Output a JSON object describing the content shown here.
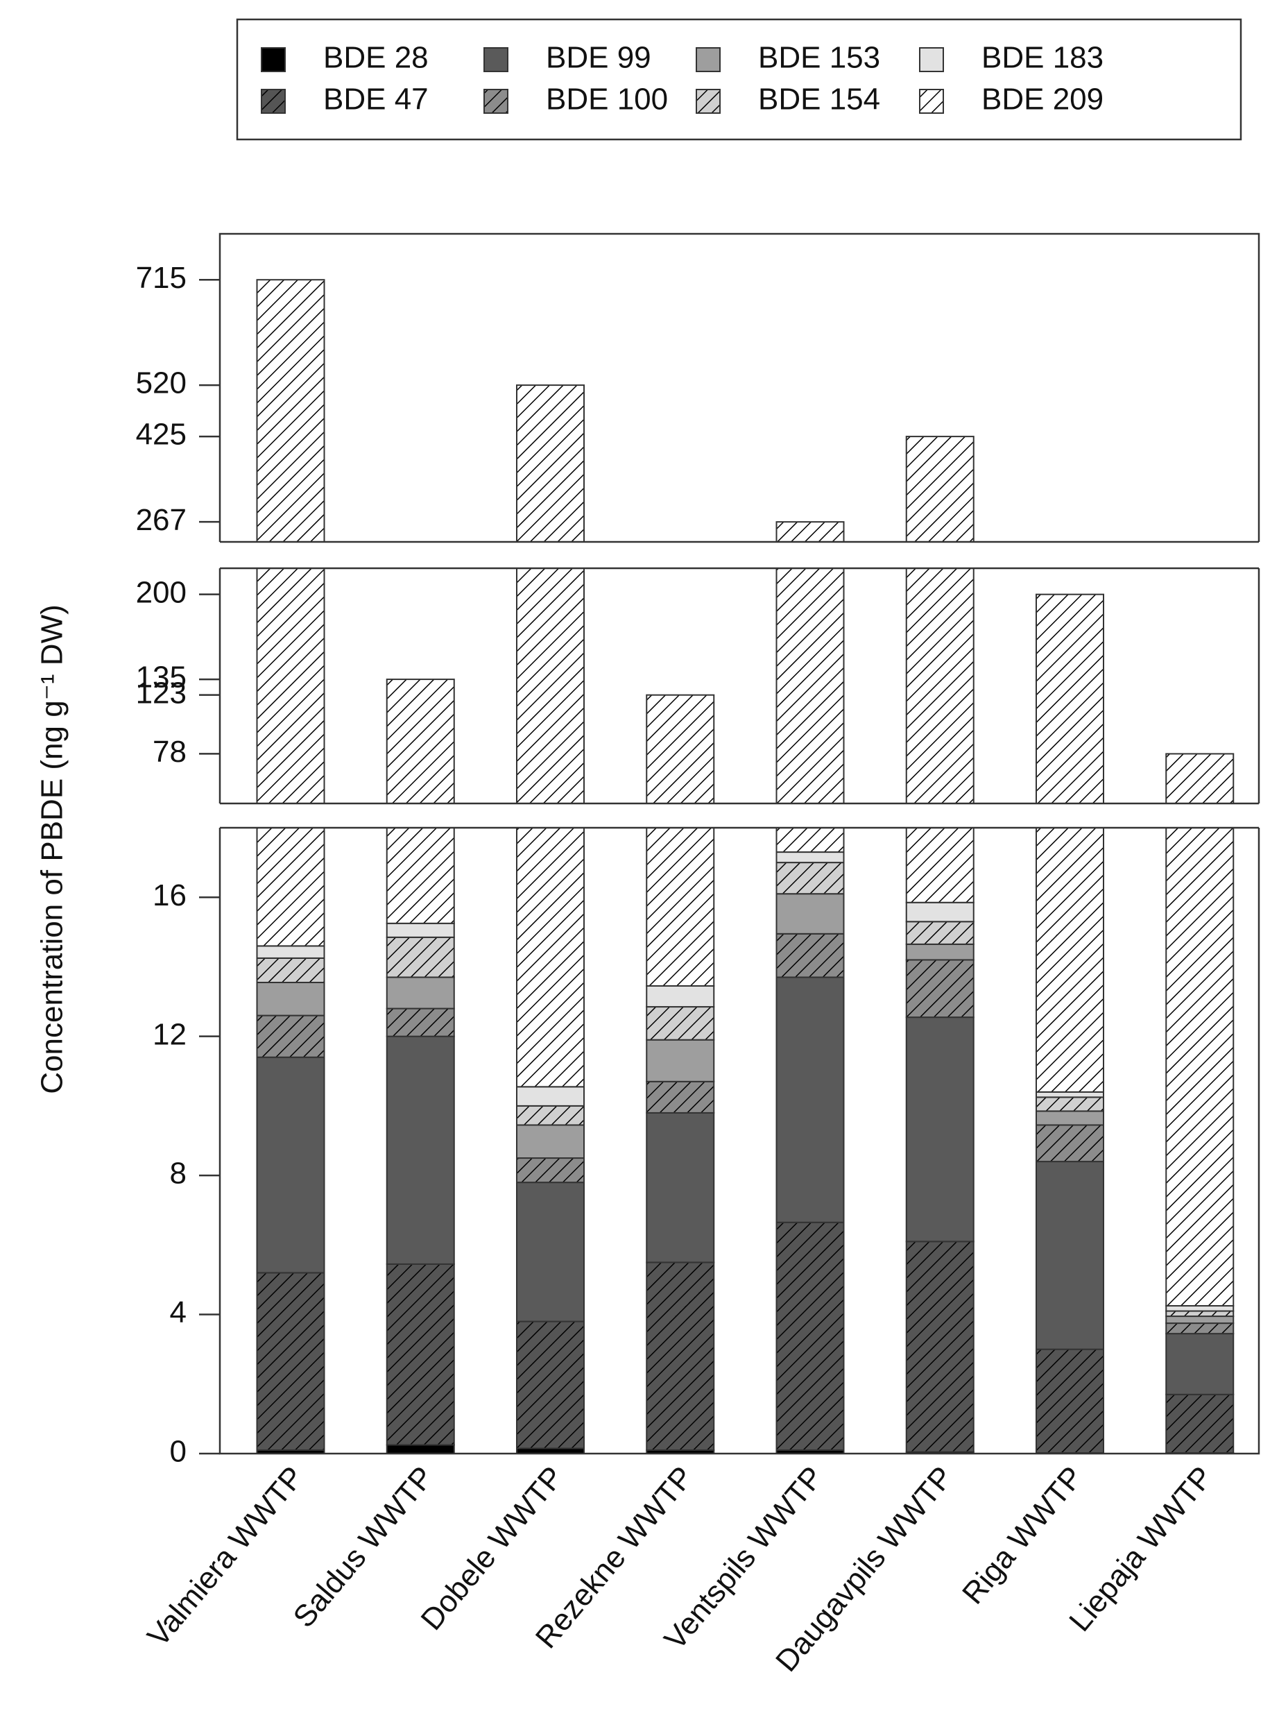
{
  "chart_data": {
    "type": "bar",
    "stacked": true,
    "broken_axis": true,
    "y_label": "Concentration of PBDE (ng g⁻¹ DW)",
    "categories": [
      "Valmiera WWTP",
      "Saldus WWTP",
      "Dobele WWTP",
      "Rezekne WWTP",
      "Ventspils WWTP",
      "Daugavpils WWTP",
      "Riga WWTP",
      "Liepaja WWTP"
    ],
    "panels": [
      {
        "ylim": [
          0,
          18
        ],
        "yticks": [
          0,
          4,
          8,
          12,
          16
        ]
      },
      {
        "ylim": [
          40,
          220
        ],
        "yticks": [
          78,
          123,
          135,
          200
        ]
      },
      {
        "ylim": [
          230,
          800
        ],
        "yticks": [
          267,
          425,
          520,
          715
        ]
      }
    ],
    "series": [
      {
        "name": "BDE 28",
        "color": "#000000",
        "hatch": false,
        "values": [
          0.1,
          0.25,
          0.15,
          0.1,
          0.1,
          0.05,
          0.02,
          0.02
        ]
      },
      {
        "name": "BDE 47",
        "color": "#555555",
        "hatch": true,
        "values": [
          5.1,
          5.2,
          3.65,
          5.4,
          6.55,
          6.05,
          2.98,
          1.68
        ]
      },
      {
        "name": "BDE 99",
        "color": "#5a5a5a",
        "hatch": false,
        "values": [
          6.2,
          6.55,
          4.0,
          4.3,
          7.05,
          6.45,
          5.4,
          1.75
        ]
      },
      {
        "name": "BDE 100",
        "color": "#8c8c8c",
        "hatch": true,
        "values": [
          1.2,
          0.8,
          0.7,
          0.9,
          1.25,
          1.65,
          1.05,
          0.3
        ]
      },
      {
        "name": "BDE 153",
        "color": "#9e9e9e",
        "hatch": false,
        "values": [
          0.95,
          0.9,
          0.95,
          1.2,
          1.15,
          0.45,
          0.4,
          0.2
        ]
      },
      {
        "name": "BDE 154",
        "color": "#d0d0d0",
        "hatch": true,
        "values": [
          0.7,
          1.15,
          0.55,
          0.95,
          0.9,
          0.65,
          0.4,
          0.15
        ]
      },
      {
        "name": "BDE 183",
        "color": "#e2e2e2",
        "hatch": false,
        "values": [
          0.35,
          0.4,
          0.55,
          0.6,
          0.3,
          0.55,
          0.15,
          0.15
        ]
      },
      {
        "name": "BDE 209",
        "color": "#ffffff",
        "hatch": true,
        "values": [
          700.4,
          119.75,
          509.45,
          109.55,
          249.7,
          409.15,
          189.6,
          73.75
        ]
      }
    ]
  }
}
